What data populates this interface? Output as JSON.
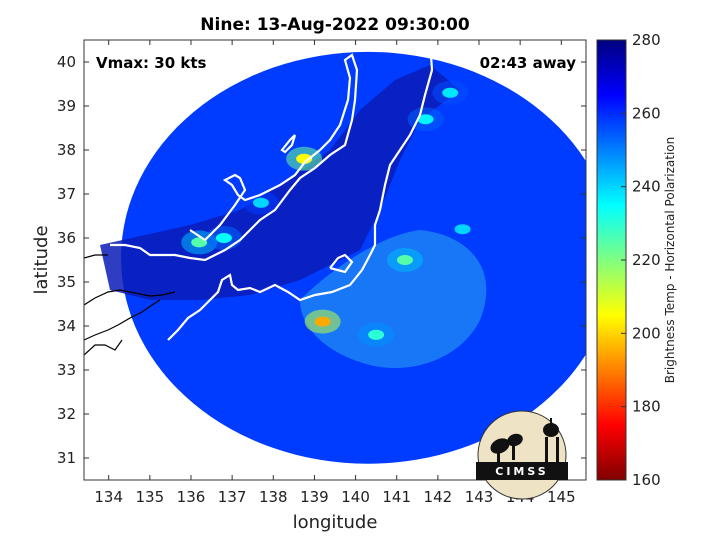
{
  "chart_data": {
    "type": "heatmap",
    "title": "Nine: 13-Aug-2022 09:30:00",
    "xlabel": "longitude",
    "ylabel": "latitude",
    "xlim": [
      133.4,
      145.6
    ],
    "ylim": [
      30.5,
      40.5
    ],
    "x_ticks": [
      134,
      135,
      136,
      137,
      138,
      139,
      140,
      141,
      142,
      143,
      144,
      145
    ],
    "y_ticks": [
      31,
      32,
      33,
      34,
      35,
      36,
      37,
      38,
      39,
      40
    ],
    "annotations": {
      "vmax": "Vmax: 30 kts",
      "time_away": "02:43 away"
    },
    "colorbar": {
      "label": "Brightness Temp - Horizontal Polarization",
      "min": 160,
      "max": 280,
      "ticks": [
        160,
        180,
        200,
        220,
        240,
        260,
        280
      ],
      "colormap": [
        "#800000",
        "#ff0000",
        "#ff8000",
        "#ffff00",
        "#80ff80",
        "#00ffff",
        "#0080ff",
        "#0000ff",
        "#000080"
      ]
    },
    "swath": {
      "center_lon": 140.3,
      "center_lat": 35.55,
      "radius_deg": 6.0,
      "background_bt": 258
    },
    "features": [
      {
        "lon": 139.2,
        "lat": 34.1,
        "bt": 195
      },
      {
        "lon": 138.75,
        "lat": 37.8,
        "bt": 205
      },
      {
        "lon": 141.2,
        "lat": 35.5,
        "bt": 225
      },
      {
        "lon": 140.5,
        "lat": 33.8,
        "bt": 230
      },
      {
        "lon": 136.2,
        "lat": 35.9,
        "bt": 225
      },
      {
        "lon": 136.8,
        "lat": 36.0,
        "bt": 235
      },
      {
        "lon": 142.3,
        "lat": 39.3,
        "bt": 238
      },
      {
        "lon": 141.7,
        "lat": 38.7,
        "bt": 236
      },
      {
        "lon": 142.6,
        "lat": 36.2,
        "bt": 240
      },
      {
        "lon": 137.7,
        "lat": 36.8,
        "bt": 240
      }
    ]
  },
  "logo": {
    "text": "CIMSS"
  }
}
